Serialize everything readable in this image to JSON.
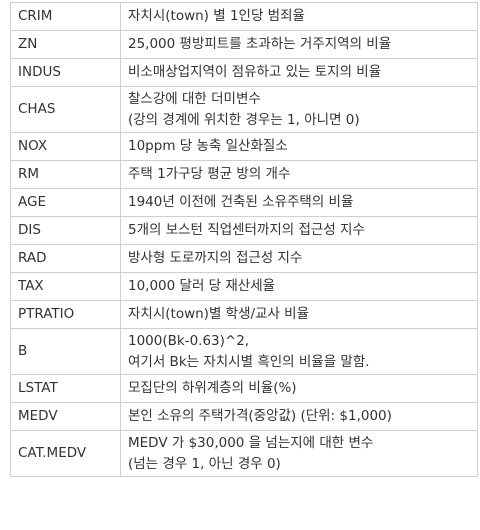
{
  "rows": [
    {
      "name": "CRIM",
      "desc": [
        "자치시(town) 별 1인당 범죄율"
      ]
    },
    {
      "name": "ZN",
      "desc": [
        "25,000 평방피트를 초과하는 거주지역의 비율"
      ]
    },
    {
      "name": "INDUS",
      "desc": [
        "비소매상업지역이 점유하고 있는 토지의 비율"
      ]
    },
    {
      "name": "CHAS",
      "desc": [
        "찰스강에 대한 더미변수",
        "(강의 경계에 위치한 경우는 1, 아니면 0)"
      ]
    },
    {
      "name": "NOX",
      "desc": [
        "10ppm 당 농축 일산화질소"
      ]
    },
    {
      "name": "RM",
      "desc": [
        "주택 1가구당 평균 방의 개수"
      ]
    },
    {
      "name": "AGE",
      "desc": [
        "1940년 이전에 건축된 소유주택의 비율"
      ]
    },
    {
      "name": "DIS",
      "desc": [
        "5개의 보스턴 직업센터까지의 접근성 지수"
      ]
    },
    {
      "name": "RAD",
      "desc": [
        "방사형 도로까지의 접근성 지수"
      ]
    },
    {
      "name": "TAX",
      "desc": [
        "10,000 달러 당 재산세율"
      ]
    },
    {
      "name": "PTRATIO",
      "desc": [
        "자치시(town)별 학생/교사 비율"
      ]
    },
    {
      "name": "B",
      "desc": [
        "1000(Bk-0.63)^2,",
        "여기서 Bk는 자치시별 흑인의 비율을 말함."
      ]
    },
    {
      "name": "LSTAT",
      "desc": [
        "모집단의 하위계층의 비율(%)"
      ]
    },
    {
      "name": "MEDV",
      "desc": [
        "본인 소유의 주택가격(중앙값) (단위: $1,000)"
      ]
    },
    {
      "name": "CAT.MEDV",
      "desc": [
        "MEDV 가 $30,000 을 넘는지에 대한 변수",
        "(넘는 경우 1, 아닌 경우 0)"
      ]
    }
  ]
}
